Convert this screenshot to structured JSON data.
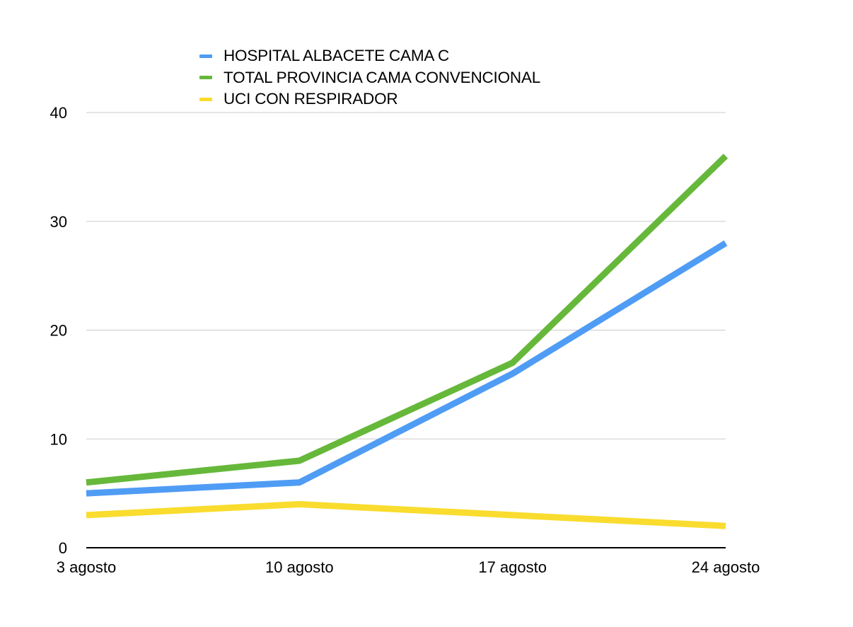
{
  "chart_data": {
    "type": "line",
    "categories": [
      "3 agosto",
      "10 agosto",
      "17 agosto",
      "24 agosto"
    ],
    "series": [
      {
        "name": "HOSPITAL ALBACETE CAMA C",
        "color": "#4f9cf5",
        "values": [
          5,
          6,
          16,
          28
        ]
      },
      {
        "name": "TOTAL PROVINCIA CAMA CONVENCIONAL",
        "color": "#66b83a",
        "values": [
          6,
          8,
          17,
          36
        ]
      },
      {
        "name": "UCI CON RESPIRADOR",
        "color": "#f9dc2e",
        "values": [
          3,
          4,
          3,
          2
        ]
      }
    ],
    "yticks": [
      "0",
      "10",
      "20",
      "30",
      "40"
    ],
    "ylim": [
      0,
      40
    ],
    "grid": true,
    "legend_position": "top-left"
  }
}
